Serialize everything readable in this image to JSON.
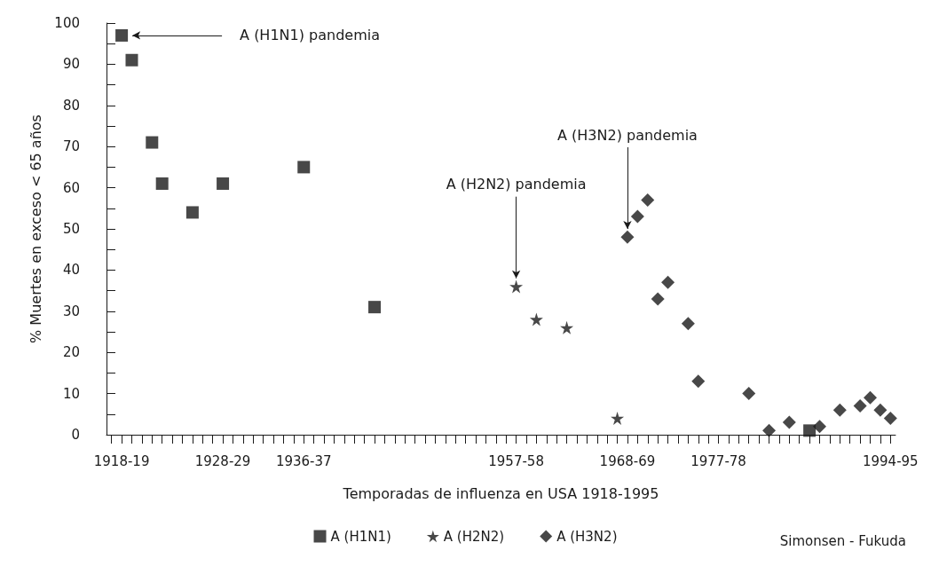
{
  "chart_data": {
    "type": "scatter",
    "xlabel": "Temporadas de influenza en USA 1918-1995",
    "ylabel": "% Muertes en exceso < 65 años",
    "categories": [
      null,
      "1918-19",
      null,
      null,
      null,
      null,
      null,
      null,
      null,
      null,
      null,
      "1928-29",
      null,
      null,
      null,
      null,
      null,
      null,
      null,
      "1936-37",
      null,
      null,
      null,
      null,
      null,
      null,
      null,
      null,
      null,
      null,
      null,
      null,
      null,
      null,
      null,
      null,
      null,
      null,
      null,
      null,
      "1957-58",
      null,
      null,
      null,
      null,
      null,
      null,
      null,
      null,
      null,
      null,
      "1968-69",
      null,
      null,
      null,
      null,
      null,
      null,
      null,
      null,
      "1977-78",
      null,
      null,
      null,
      null,
      null,
      null,
      null,
      null,
      null,
      null,
      null,
      null,
      null,
      null,
      null,
      null,
      "1994-95"
    ],
    "series": [
      {
        "name": "A (H1N1)",
        "color": "#1a1a1a",
        "marker": "square",
        "values": [
          null,
          97,
          91,
          null,
          71,
          61,
          null,
          null,
          54,
          null,
          null,
          61,
          null,
          null,
          null,
          null,
          null,
          null,
          null,
          65,
          null,
          null,
          null,
          null,
          null,
          null,
          31,
          null,
          null,
          null,
          null,
          null,
          null,
          null,
          null,
          null,
          null,
          null,
          null,
          null,
          null,
          null,
          null,
          null,
          null,
          null,
          null,
          null,
          null,
          null,
          null,
          null,
          null,
          null,
          null,
          null,
          null,
          null,
          null,
          null,
          null,
          null,
          null,
          null,
          null,
          null,
          null,
          null,
          null,
          1,
          null,
          null,
          null,
          null,
          null,
          null,
          null,
          null
        ]
      },
      {
        "name": "A (H2N2)",
        "color": "#1a1a1a",
        "marker": "star",
        "values": [
          null,
          null,
          null,
          null,
          null,
          null,
          null,
          null,
          null,
          null,
          null,
          null,
          null,
          null,
          null,
          null,
          null,
          null,
          null,
          null,
          null,
          null,
          null,
          null,
          null,
          null,
          null,
          null,
          null,
          null,
          null,
          null,
          null,
          null,
          null,
          null,
          null,
          null,
          null,
          null,
          36,
          null,
          28,
          null,
          null,
          26,
          null,
          null,
          null,
          null,
          4,
          null,
          null,
          null,
          null,
          null,
          null,
          null,
          null,
          null,
          null,
          null,
          null,
          null,
          null,
          null,
          null,
          null,
          null,
          null,
          null,
          null,
          null,
          null,
          null,
          null,
          null,
          null
        ]
      },
      {
        "name": "A (H3N2)",
        "color": "#1a1a1a",
        "marker": "diamond",
        "values": [
          null,
          null,
          null,
          null,
          null,
          null,
          null,
          null,
          null,
          null,
          null,
          null,
          null,
          null,
          null,
          null,
          null,
          null,
          null,
          null,
          null,
          null,
          null,
          null,
          null,
          null,
          null,
          null,
          null,
          null,
          null,
          null,
          null,
          null,
          null,
          null,
          null,
          null,
          null,
          null,
          null,
          null,
          null,
          null,
          null,
          null,
          null,
          null,
          null,
          null,
          null,
          48,
          53,
          57,
          33,
          37,
          null,
          27,
          13,
          null,
          null,
          null,
          null,
          10,
          null,
          1,
          null,
          3,
          null,
          null,
          2,
          null,
          6,
          null,
          7,
          9,
          6,
          4
        ]
      }
    ],
    "ylim": [
      0,
      100
    ],
    "yticks": [
      0,
      {
        "value": 5,
        "label": null
      },
      10,
      {
        "value": 15,
        "label": null
      },
      20,
      {
        "value": 25,
        "label": null
      },
      30,
      {
        "value": 35,
        "label": null
      },
      40,
      {
        "value": 45,
        "label": null
      },
      50,
      {
        "value": 55,
        "label": null
      },
      60,
      {
        "value": 65,
        "label": null
      },
      70,
      {
        "value": 75,
        "label": null
      },
      80,
      {
        "value": 85,
        "label": null
      },
      90,
      {
        "value": 95,
        "label": null
      },
      100
    ],
    "grid": false,
    "legend": "bottom",
    "annotations": [
      "A (H1N1) pandemia",
      {
        "text": "A (H2N2) pandemia",
        "x": "1957-58",
        "y": 38
      },
      {
        "text": "A (H3N2) pandemia",
        "x": "1968-69",
        "y": 50
      },
      "Simonsen - Fukuda"
    ]
  }
}
